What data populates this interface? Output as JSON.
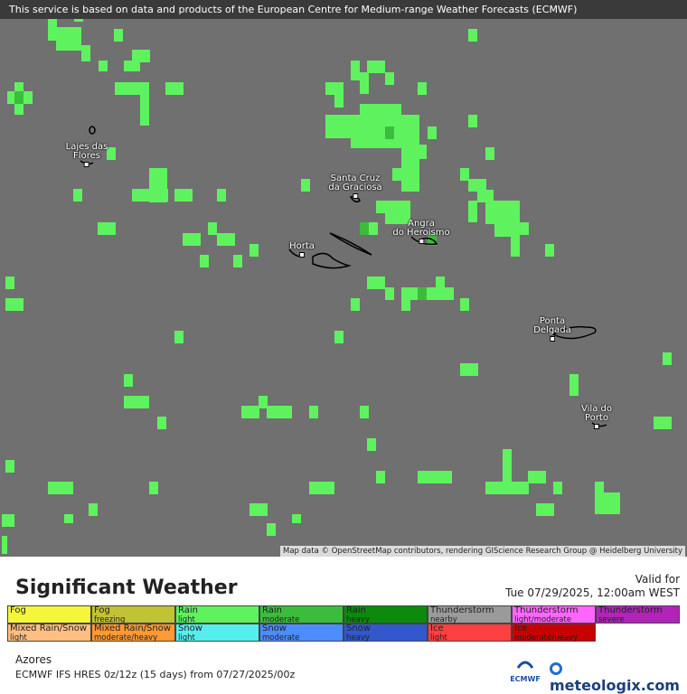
{
  "header": {
    "attribution": "This service is based on data and products of the European Centre for Medium-range Weather Forecasts (ECMWF)"
  },
  "map": {
    "places": [
      {
        "lines": [
          "Lajes das",
          "Flores"
        ]
      },
      {
        "lines": [
          "Santa Cruz",
          "da Graciosa"
        ]
      },
      {
        "lines": [
          "Angra",
          "do Heroismo"
        ]
      },
      {
        "lines": [
          "Horta"
        ]
      },
      {
        "lines": [
          "Ponta",
          "Delgada"
        ]
      },
      {
        "lines": [
          "Vila do",
          "Porto"
        ]
      }
    ],
    "credit": "Map data © OpenStreetMap contributors, rendering GIScience Research Group @ Heidelberg University"
  },
  "legend": {
    "title": "Significant Weather",
    "valid_label": "Valid for",
    "valid_time": "Tue 07/29/2025, 12:00am WEST",
    "rows": [
      [
        {
          "name": "Fog",
          "sub": "",
          "color": "#f5f53a"
        },
        {
          "name": "Fog",
          "sub": "freezing",
          "color": "#c2c235"
        },
        {
          "name": "Rain",
          "sub": "light",
          "color": "#5ff25f"
        },
        {
          "name": "Rain",
          "sub": "moderate",
          "color": "#3cbc3c"
        },
        {
          "name": "Rain",
          "sub": "heavy",
          "color": "#0c8a0c"
        },
        {
          "name": "Thunderstorm",
          "sub": "nearby",
          "color": "#9a9a9a"
        },
        {
          "name": "Thunderstorm",
          "sub": "light/moderate",
          "color": "#ff66ff"
        },
        {
          "name": "Thunderstorm",
          "sub": "severe",
          "color": "#b024b8"
        }
      ],
      [
        {
          "name": "Mixed Rain/Snow",
          "sub": "light",
          "color": "#ffbf80"
        },
        {
          "name": "Mixed Rain/Snow",
          "sub": "moderate/heavy",
          "color": "#ff9933"
        },
        {
          "name": "Snow",
          "sub": "light",
          "color": "#55eeee"
        },
        {
          "name": "Snow",
          "sub": "moderate",
          "color": "#4d8cff"
        },
        {
          "name": "Snow",
          "sub": "heavy",
          "color": "#3358cc"
        },
        {
          "name": "Ice",
          "sub": "light",
          "color": "#ff4040"
        },
        {
          "name": "Ice",
          "sub": "moderate/heavy",
          "color": "#c80000"
        }
      ]
    ]
  },
  "footer": {
    "region": "Azores",
    "model": "ECMWF IFS HRES 0z/12z (15 days) from  07/27/2025/00z",
    "ecmwf": "ECMWF",
    "brand": "meteologix.com"
  }
}
